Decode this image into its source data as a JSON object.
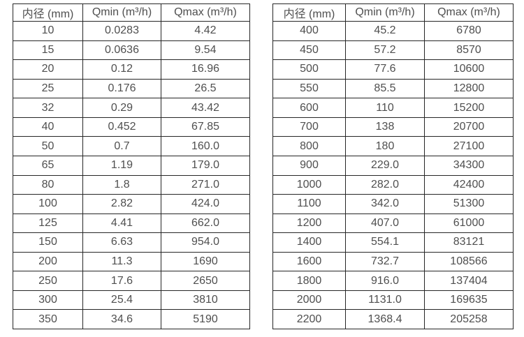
{
  "colors": {
    "background": "#ffffff",
    "border": "#262626",
    "text": "#4f4f4f"
  },
  "tables": [
    {
      "headers": [
        "内径 (mm)",
        "Qmin (m³/h)",
        "Qmax (m³/h)"
      ],
      "rows": [
        [
          "10",
          "0.0283",
          "4.42"
        ],
        [
          "15",
          "0.0636",
          "9.54"
        ],
        [
          "20",
          "0.12",
          "16.96"
        ],
        [
          "25",
          "0.176",
          "26.5"
        ],
        [
          "32",
          "0.29",
          "43.42"
        ],
        [
          "40",
          "0.452",
          "67.85"
        ],
        [
          "50",
          "0.7",
          "160.0"
        ],
        [
          "65",
          "1.19",
          "179.0"
        ],
        [
          "80",
          "1.8",
          "271.0"
        ],
        [
          "100",
          "2.82",
          "424.0"
        ],
        [
          "125",
          "4.41",
          "662.0"
        ],
        [
          "150",
          "6.63",
          "954.0"
        ],
        [
          "200",
          "11.3",
          "1690"
        ],
        [
          "250",
          "17.6",
          "2650"
        ],
        [
          "300",
          "25.4",
          "3810"
        ],
        [
          "350",
          "34.6",
          "5190"
        ]
      ]
    },
    {
      "headers": [
        "内径 (mm)",
        "Qmin (m³/h)",
        "Qmax (m³/h)"
      ],
      "rows": [
        [
          "400",
          "45.2",
          "6780"
        ],
        [
          "450",
          "57.2",
          "8570"
        ],
        [
          "500",
          "77.6",
          "10600"
        ],
        [
          "550",
          "85.5",
          "12800"
        ],
        [
          "600",
          "110",
          "15200"
        ],
        [
          "700",
          "138",
          "20700"
        ],
        [
          "800",
          "180",
          "27100"
        ],
        [
          "900",
          "229.0",
          "34300"
        ],
        [
          "1000",
          "282.0",
          "42400"
        ],
        [
          "1100",
          "342.0",
          "51300"
        ],
        [
          "1200",
          "407.0",
          "61000"
        ],
        [
          "1400",
          "554.1",
          "83121"
        ],
        [
          "1600",
          "732.7",
          "108566"
        ],
        [
          "1800",
          "916.0",
          "137404"
        ],
        [
          "2000",
          "1131.0",
          "169635"
        ],
        [
          "2200",
          "1368.4",
          "205258"
        ]
      ]
    }
  ]
}
